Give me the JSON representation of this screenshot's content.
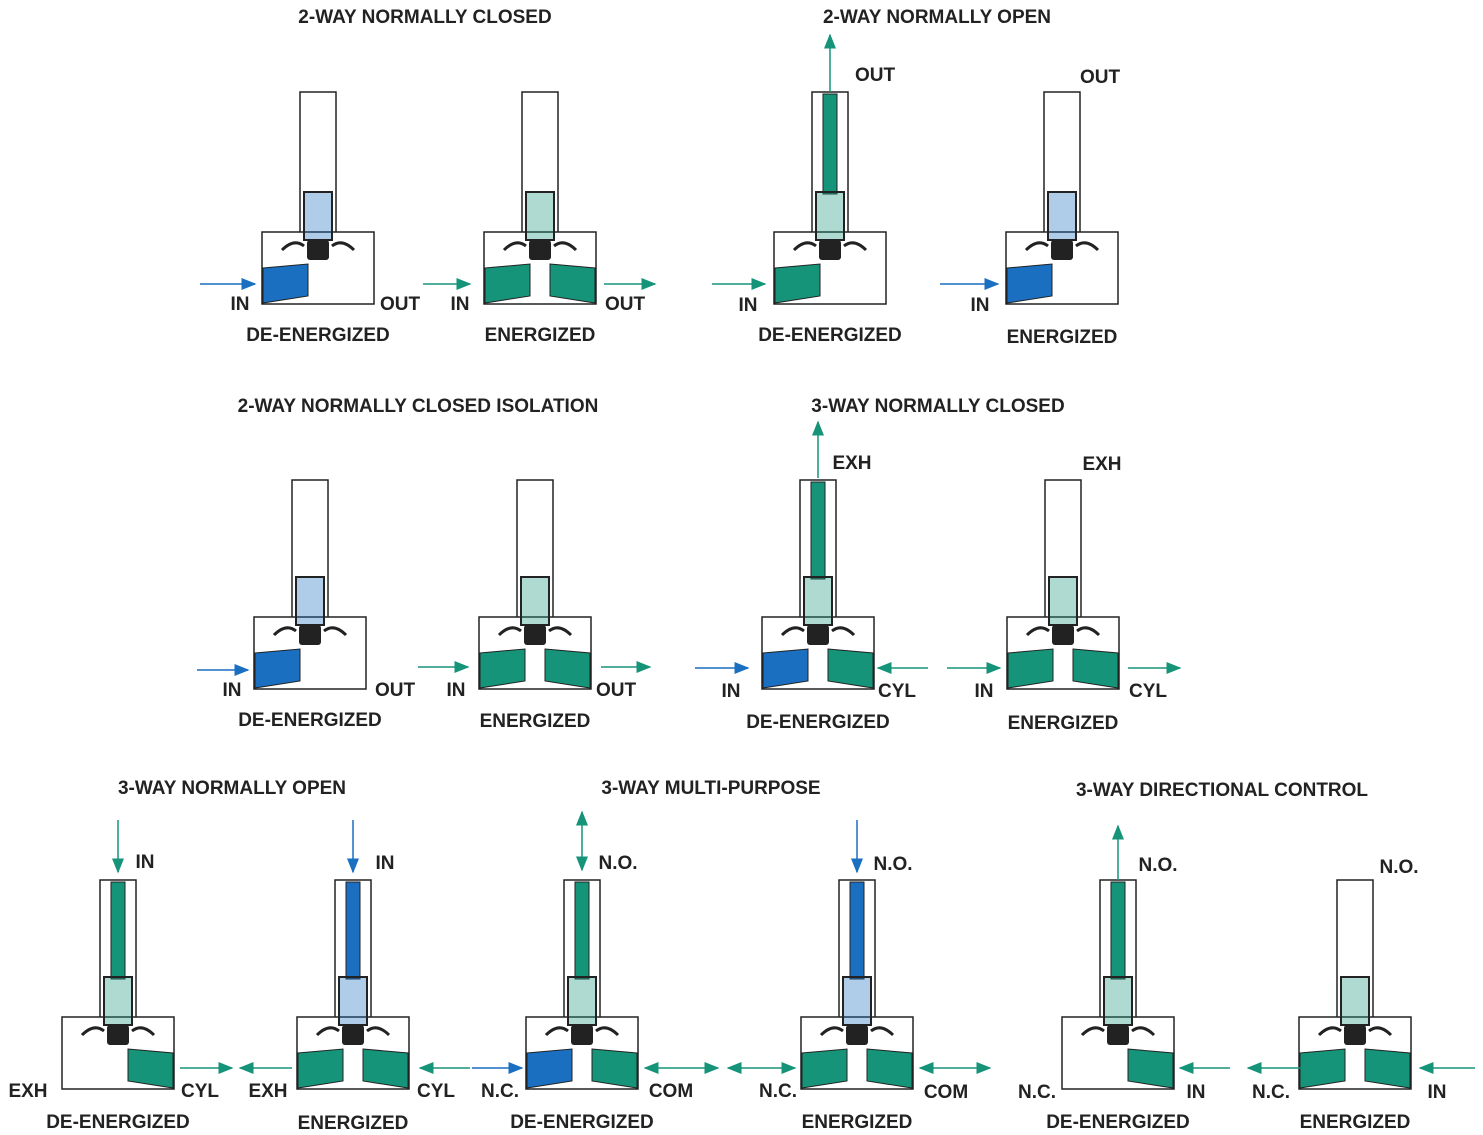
{
  "sections": [
    {
      "title": "2-WAY NORMALLY CLOSED",
      "valves": [
        {
          "state": "DE-ENERGIZED",
          "ports": [
            "IN",
            "OUT"
          ]
        },
        {
          "state": "ENERGIZED",
          "ports": [
            "IN",
            "OUT"
          ]
        }
      ]
    },
    {
      "title": "2-WAY NORMALLY OPEN",
      "valves": [
        {
          "state": "DE-ENERGIZED",
          "ports": [
            "OUT",
            "IN"
          ]
        },
        {
          "state": "ENERGIZED",
          "ports": [
            "OUT",
            "IN"
          ]
        }
      ]
    },
    {
      "title": "2-WAY NORMALLY CLOSED ISOLATION",
      "valves": [
        {
          "state": "DE-ENERGIZED",
          "ports": [
            "IN",
            "OUT"
          ]
        },
        {
          "state": "ENERGIZED",
          "ports": [
            "IN",
            "OUT"
          ]
        }
      ]
    },
    {
      "title": "3-WAY NORMALLY CLOSED",
      "valves": [
        {
          "state": "DE-ENERGIZED",
          "ports": [
            "EXH",
            "IN",
            "CYL"
          ]
        },
        {
          "state": "ENERGIZED",
          "ports": [
            "EXH",
            "IN",
            "CYL"
          ]
        }
      ]
    },
    {
      "title": "3-WAY NORMALLY OPEN",
      "valves": [
        {
          "state": "DE-ENERGIZED",
          "ports": [
            "IN",
            "EXH",
            "CYL"
          ]
        },
        {
          "state": "ENERGIZED",
          "ports": [
            "IN",
            "EXH",
            "CYL"
          ]
        }
      ]
    },
    {
      "title": "3-WAY MULTI-PURPOSE",
      "valves": [
        {
          "state": "DE-ENERGIZED",
          "ports": [
            "N.O.",
            "N.C.",
            "COM"
          ]
        },
        {
          "state": "ENERGIZED",
          "ports": [
            "N.O.",
            "N.C.",
            "COM"
          ]
        }
      ]
    },
    {
      "title": "3-WAY DIRECTIONAL CONTROL",
      "valves": [
        {
          "state": "DE-ENERGIZED",
          "ports": [
            "N.O.",
            "N.C.",
            "IN"
          ]
        },
        {
          "state": "ENERGIZED",
          "ports": [
            "N.O.",
            "N.C.",
            "IN"
          ]
        }
      ]
    }
  ]
}
